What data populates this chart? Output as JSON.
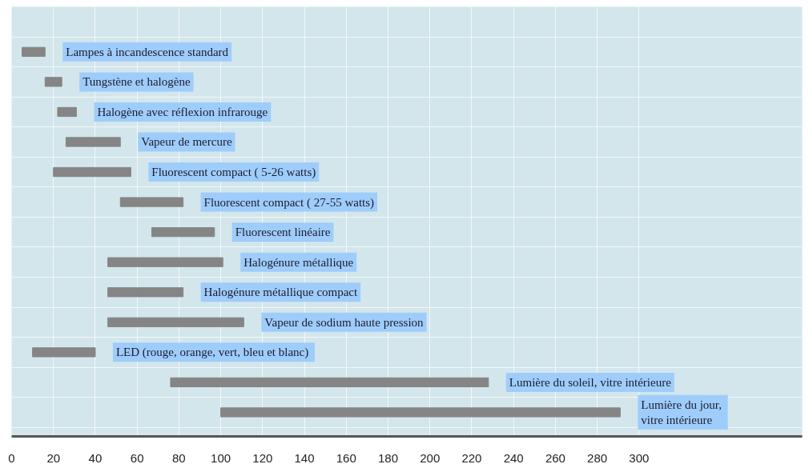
{
  "chart_data": {
    "type": "bar",
    "orientation": "horizontal",
    "categories": [
      "Lampes à incandescence standard",
      "Tungstène et halogène",
      "Halogène avec réflexion infrarouge",
      "Vapeur de mercure",
      "Fluorescent compact ( 5-26 watts)",
      "Fluorescent compact ( 27-55 watts)",
      "Fluorescent linéaire",
      "Halogénure métallique",
      "Halogénure métallique compact",
      "Vapeur de sodium haute pression",
      "LED (rouge, orange, vert,  bleu et blanc)",
      "Lumière du soleil, vitre intérieure",
      "Lumière du  jour,\nvitre intérieure"
    ],
    "base": [
      5,
      16,
      22,
      26,
      20,
      52,
      67,
      46,
      46,
      46,
      10,
      76,
      100
    ],
    "values": [
      11,
      8,
      9,
      26,
      37,
      30,
      30,
      55,
      36,
      65,
      30,
      152,
      191
    ],
    "color": "#858585",
    "xlim": [
      0,
      378
    ],
    "xticks": [
      0,
      20,
      40,
      60,
      80,
      100,
      120,
      140,
      160,
      180,
      200,
      220,
      240,
      260,
      280,
      300
    ],
    "grid": true
  }
}
